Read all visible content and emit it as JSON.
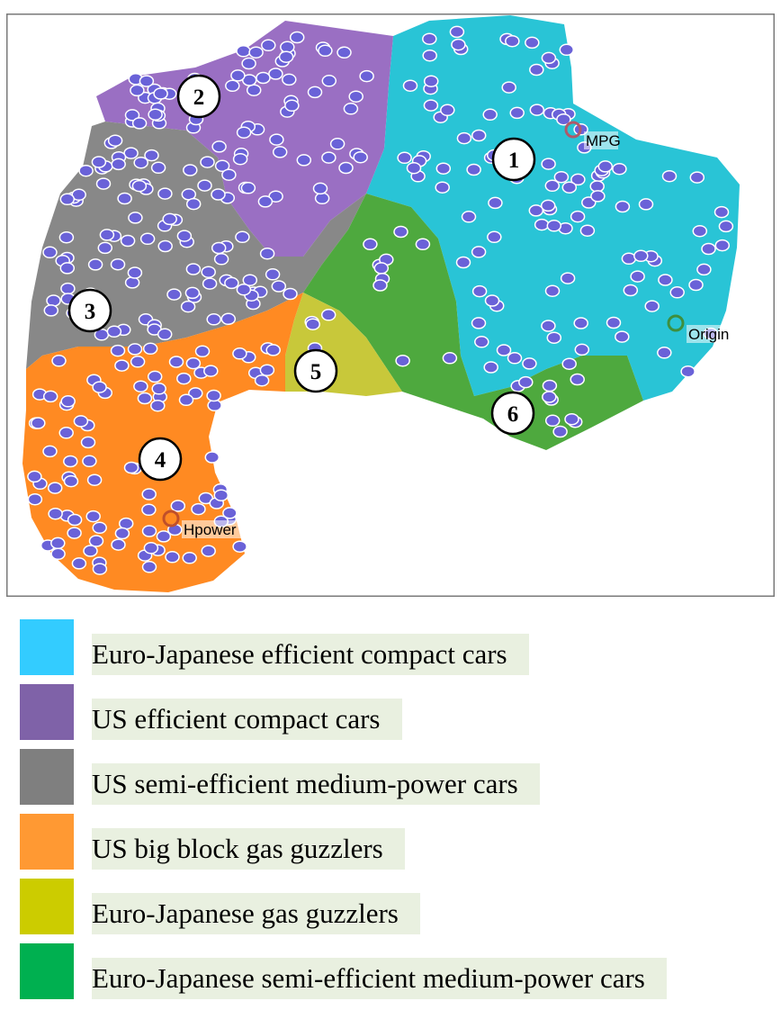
{
  "chart_data": {
    "type": "scatter",
    "title": "",
    "clusters": [
      {
        "number": "1",
        "name": "Euro-Japanese efficient compact cars",
        "color": "#29c4d6"
      },
      {
        "number": "2",
        "name": "US efficient compact cars",
        "color": "#9a6fc3"
      },
      {
        "number": "3",
        "name": "US semi-efficient medium-power cars",
        "color": "#888888"
      },
      {
        "number": "4",
        "name": "US big block gas guzzlers",
        "color": "#ff8a22"
      },
      {
        "number": "5",
        "name": "Euro-Japanese gas guzzlers",
        "color": "#c8c83a"
      },
      {
        "number": "6",
        "name": "Euro-Japanese semi-efficient medium-power cars",
        "color": "#4ea93e"
      }
    ],
    "variables": [
      {
        "name": "MPG",
        "color": "#b05a6a"
      },
      {
        "name": "Origin",
        "color": "#3e8f3e"
      },
      {
        "name": "Hpower",
        "color": "#c0502a"
      }
    ]
  },
  "legend": [
    {
      "label": "Euro-Japanese efficient compact cars",
      "color": "#33ccff"
    },
    {
      "label": "US efficient compact cars",
      "color": "#7f62a8"
    },
    {
      "label": "US semi-efficient medium-power cars",
      "color": "#7f7f7f"
    },
    {
      "label": "US big block gas guzzlers",
      "color": "#ff9933"
    },
    {
      "label": "Euro-Japanese gas guzzlers",
      "color": "#cccc00"
    },
    {
      "label": "Euro-Japanese semi-efficient medium-power cars",
      "color": "#00b050"
    }
  ]
}
